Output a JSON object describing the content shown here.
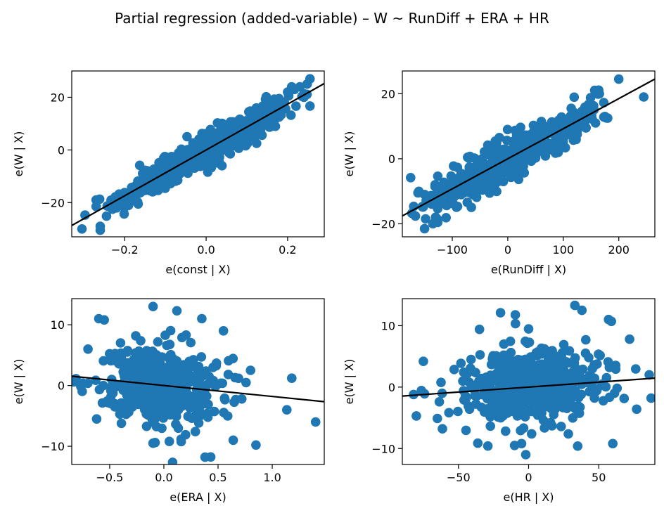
{
  "figure": {
    "suptitle": "Partial regression (added-variable) – W ~ RunDiff + ERA + HR"
  },
  "colors": {
    "points": "#1f77b4",
    "fit_line": "#000000"
  },
  "chart_data": [
    {
      "type": "scatter",
      "xlabel": "e(const | X)",
      "ylabel": "e(W | X)",
      "xlim": [
        -0.33,
        0.29
      ],
      "ylim": [
        -33,
        30
      ],
      "xticks": [
        -0.2,
        0.0,
        0.2
      ],
      "xtick_labels": [
        "−0.2",
        "0.0",
        "0.2"
      ],
      "yticks": [
        -20,
        0,
        20
      ],
      "ytick_labels": [
        "−20",
        "0",
        "20"
      ],
      "fit": {
        "slope": 87,
        "intercept": 0
      },
      "noise": 3.6,
      "points": [
        [
          -0.305,
          -30
        ],
        [
          -0.26,
          -29
        ],
        [
          -0.26,
          -30.5
        ],
        [
          -0.27,
          -19
        ],
        [
          -0.27,
          -21.5
        ],
        [
          -0.23,
          -22.5
        ],
        [
          -0.22,
          -22
        ],
        [
          -0.2,
          -21.8
        ],
        [
          0.255,
          27
        ],
        [
          0.23,
          24
        ],
        [
          0.2,
          22
        ],
        [
          0.17,
          9
        ],
        [
          0.24,
          20
        ],
        [
          0.21,
          24
        ]
      ],
      "cloud": [
        {
          "n": 420,
          "center": [
            0.0,
            0.0
          ],
          "spread": [
            0.085,
            0
          ]
        },
        {
          "n": 60,
          "center": [
            0.14,
            12
          ],
          "spread": [
            0.04,
            0
          ]
        },
        {
          "n": 60,
          "center": [
            -0.16,
            -14
          ],
          "spread": [
            0.035,
            0
          ]
        }
      ]
    },
    {
      "type": "scatter",
      "xlabel": "e(RunDiff | X)",
      "ylabel": "e(W | X)",
      "xlim": [
        -190,
        265
      ],
      "ylim": [
        -24,
        27
      ],
      "xticks": [
        -100,
        0,
        100,
        200
      ],
      "xtick_labels": [
        "−100",
        "0",
        "100",
        "200"
      ],
      "yticks": [
        -20,
        0,
        20
      ],
      "ytick_labels": [
        "−20",
        "0",
        "20"
      ],
      "fit": {
        "slope": 0.0925,
        "intercept": 0
      },
      "noise": 3.6,
      "points": [
        [
          -175,
          -5.8
        ],
        [
          -150,
          -21.5
        ],
        [
          -148,
          -18.5
        ],
        [
          -135,
          -20
        ],
        [
          -130,
          -18
        ],
        [
          -150,
          -11
        ],
        [
          200,
          24.5
        ],
        [
          245,
          19
        ],
        [
          180,
          12.5
        ],
        [
          165,
          20
        ],
        [
          175,
          13
        ],
        [
          158,
          11
        ]
      ],
      "cloud": [
        {
          "n": 420,
          "center": [
            0,
            0
          ],
          "spread": [
            55,
            0
          ]
        },
        {
          "n": 60,
          "center": [
            110,
            10
          ],
          "spread": [
            30,
            0
          ]
        },
        {
          "n": 60,
          "center": [
            -110,
            -10
          ],
          "spread": [
            25,
            0
          ]
        }
      ]
    },
    {
      "type": "scatter",
      "xlabel": "e(ERA | X)",
      "ylabel": "e(W | X)",
      "xlim": [
        -0.85,
        1.48
      ],
      "ylim": [
        -13,
        14.3
      ],
      "xticks": [
        -0.5,
        0.0,
        0.5,
        1.0
      ],
      "xtick_labels": [
        "−0.5",
        "0.0",
        "0.5",
        "1.0"
      ],
      "yticks": [
        -10,
        0,
        10
      ],
      "ytick_labels": [
        "−10",
        "0",
        "10"
      ],
      "fit": {
        "slope": -1.8,
        "intercept": 0
      },
      "noise": 3.7,
      "points": [
        [
          -0.1,
          13
        ],
        [
          0.12,
          12.3
        ],
        [
          0.35,
          11
        ],
        [
          -0.6,
          11
        ],
        [
          -0.55,
          10.8
        ],
        [
          0.55,
          9
        ],
        [
          1.18,
          1.2
        ],
        [
          1.4,
          -6
        ],
        [
          0.85,
          -9.8
        ],
        [
          0.64,
          -9
        ],
        [
          0.38,
          -11.8
        ],
        [
          -0.8,
          0.6
        ],
        [
          -0.75,
          0.4
        ],
        [
          -0.7,
          6
        ],
        [
          -0.62,
          -5.5
        ],
        [
          0.8,
          2.5
        ],
        [
          -0.1,
          -9.5
        ],
        [
          0.05,
          -9.2
        ]
      ],
      "cloud": [
        {
          "n": 480,
          "center": [
            -0.02,
            0
          ],
          "spread": [
            0.26,
            0
          ]
        }
      ]
    },
    {
      "type": "scatter",
      "xlabel": "e(HR | X)",
      "ylabel": "e(W | X)",
      "xlim": [
        -90,
        90
      ],
      "ylim": [
        -12.6,
        14.4
      ],
      "xticks": [
        -50,
        0,
        50
      ],
      "xtick_labels": [
        "−50",
        "0",
        "50"
      ],
      "yticks": [
        -10,
        0,
        10
      ],
      "ytick_labels": [
        "−10",
        "0",
        "10"
      ],
      "fit": {
        "slope": 0.0162,
        "intercept": 0
      },
      "noise": 3.7,
      "points": [
        [
          -82,
          -1.2
        ],
        [
          -80,
          -4.7
        ],
        [
          -75,
          4.2
        ],
        [
          -35,
          9.4
        ],
        [
          -20,
          12.1
        ],
        [
          33,
          13.3
        ],
        [
          38,
          12.5
        ],
        [
          57,
          11
        ],
        [
          59,
          10.7
        ],
        [
          72,
          7.8
        ],
        [
          77,
          -3.6
        ],
        [
          86,
          2
        ],
        [
          -2,
          -11
        ],
        [
          -10,
          -9.5
        ],
        [
          60,
          -9.2
        ],
        [
          35,
          -9.6
        ],
        [
          -5,
          -9.2
        ]
      ],
      "cloud": [
        {
          "n": 480,
          "center": [
            0,
            0
          ],
          "spread": [
            26,
            0
          ]
        }
      ]
    }
  ]
}
